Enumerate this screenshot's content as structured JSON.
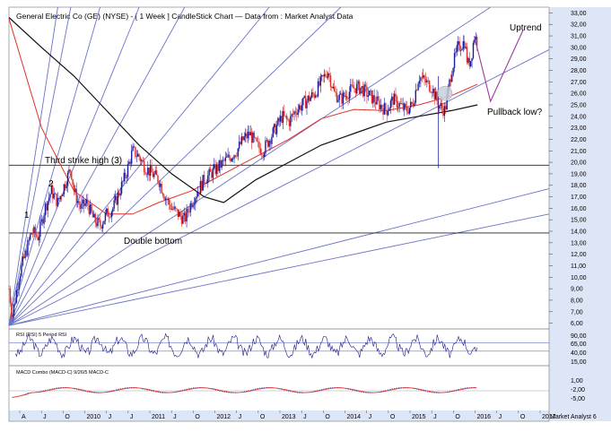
{
  "title": "General Electric Co (GE) (NYSE) -  [ 1 Week ] CandleStick Chart — Data from : Market Analyst Data",
  "watermark": "Market Analyst 6",
  "colors": {
    "up_candle": "#1a1aa0",
    "down_candle": "#e0302a",
    "red_ma": "#e0302a",
    "black_ma": "#111111",
    "fan_lines": "#6a74c8",
    "horizontal_lines": "#222222",
    "projection": "#9a3aa0",
    "circle": "#c8d0d8",
    "axis_bg": "#dde6f6"
  },
  "annotations": {
    "uptrend": "Uptrend",
    "pullback": "Pullback low?",
    "third_strike": "Third strike high (3)",
    "double_bottom": "Double bottom",
    "wave1": "1",
    "wave2": "2"
  },
  "rsi_panel": {
    "label": "RSI (RSI) 5 Period RSI",
    "ticks": [
      "90,00",
      "65,00",
      "40,00",
      "15,00"
    ]
  },
  "macd_panel": {
    "label": "MACD Combo (MACD-C) 9/26/5 MACD-C",
    "ticks": [
      "1,00",
      "-2,00",
      "-5,00"
    ]
  },
  "chart_data": {
    "type": "candlestick",
    "y_ticks": [
      "33,00",
      "32,00",
      "31,00",
      "30,00",
      "29,00",
      "28,00",
      "27,00",
      "26,00",
      "25,00",
      "24,00",
      "23,00",
      "22,00",
      "21,00",
      "20,00",
      "19,00",
      "18,00",
      "17,00",
      "16,00",
      "15,00",
      "14,00",
      "13,00",
      "12,00",
      "11,00",
      "10,00",
      "9,00",
      "8,00",
      "7,00",
      "6,00"
    ],
    "ylim": [
      5.5,
      33.5
    ],
    "x_labels": [
      "A",
      "J",
      "O",
      "2010",
      "J",
      "J",
      "2011",
      "J",
      "O",
      "2012",
      "J",
      "O",
      "2013",
      "J",
      "O",
      "2014",
      "J",
      "O",
      "2015",
      "J",
      "O",
      "2016",
      "J",
      "O",
      "2017"
    ],
    "horizontal_levels": [
      19.75,
      13.85
    ],
    "price_path": [
      [
        2009.0,
        9.0
      ],
      [
        2009.05,
        6.5
      ],
      [
        2009.15,
        10
      ],
      [
        2009.25,
        12
      ],
      [
        2009.35,
        14
      ],
      [
        2009.45,
        13.5
      ],
      [
        2009.55,
        16
      ],
      [
        2009.65,
        17.5
      ],
      [
        2009.75,
        16.5
      ],
      [
        2009.85,
        18
      ],
      [
        2009.95,
        19.5
      ],
      [
        2010.0,
        17.5
      ],
      [
        2010.1,
        16
      ],
      [
        2010.2,
        16.5
      ],
      [
        2010.3,
        15
      ],
      [
        2010.4,
        14.5
      ],
      [
        2010.5,
        15.5
      ],
      [
        2010.6,
        16
      ],
      [
        2010.7,
        17.5
      ],
      [
        2010.8,
        19
      ],
      [
        2010.9,
        21
      ],
      [
        2011.0,
        20.5
      ],
      [
        2011.1,
        19.5
      ],
      [
        2011.2,
        19
      ],
      [
        2011.3,
        18.5
      ],
      [
        2011.4,
        17
      ],
      [
        2011.5,
        16
      ],
      [
        2011.6,
        15.5
      ],
      [
        2011.7,
        15
      ],
      [
        2011.8,
        16.5
      ],
      [
        2011.9,
        17.5
      ],
      [
        2012.0,
        18.5
      ],
      [
        2012.1,
        19
      ],
      [
        2012.2,
        19.5
      ],
      [
        2012.3,
        20
      ],
      [
        2012.4,
        20.5
      ],
      [
        2012.5,
        21
      ],
      [
        2012.6,
        22
      ],
      [
        2012.7,
        22.5
      ],
      [
        2012.8,
        21.5
      ],
      [
        2012.9,
        21
      ],
      [
        2013.0,
        22
      ],
      [
        2013.1,
        23
      ],
      [
        2013.2,
        24
      ],
      [
        2013.3,
        23.5
      ],
      [
        2013.4,
        24.5
      ],
      [
        2013.5,
        25
      ],
      [
        2013.6,
        25.5
      ],
      [
        2013.7,
        26
      ],
      [
        2013.8,
        27
      ],
      [
        2013.9,
        28
      ],
      [
        2014.0,
        26
      ],
      [
        2014.1,
        25.5
      ],
      [
        2014.2,
        26
      ],
      [
        2014.3,
        26.5
      ],
      [
        2014.4,
        26.5
      ],
      [
        2014.5,
        26
      ],
      [
        2014.6,
        25.5
      ],
      [
        2014.7,
        25
      ],
      [
        2014.8,
        24.5
      ],
      [
        2014.9,
        25.5
      ],
      [
        2015.0,
        25
      ],
      [
        2015.1,
        24.5
      ],
      [
        2015.2,
        25
      ],
      [
        2015.3,
        27.5
      ],
      [
        2015.4,
        27
      ],
      [
        2015.5,
        26.5
      ],
      [
        2015.6,
        25
      ],
      [
        2015.7,
        24.5
      ],
      [
        2015.8,
        28
      ],
      [
        2015.9,
        30
      ],
      [
        2016.0,
        30.5
      ],
      [
        2016.05,
        28.5
      ],
      [
        2016.1,
        29
      ],
      [
        2016.15,
        31
      ],
      [
        2016.2,
        30.5
      ]
    ],
    "red_ma": [
      [
        2009.0,
        32.5
      ],
      [
        2009.5,
        23
      ],
      [
        2010.0,
        17.5
      ],
      [
        2010.5,
        15.5
      ],
      [
        2010.9,
        15.5
      ],
      [
        2011.3,
        16.5
      ],
      [
        2011.8,
        17.5
      ],
      [
        2012.3,
        19
      ],
      [
        2012.8,
        20.5
      ],
      [
        2013.3,
        22
      ],
      [
        2013.8,
        23.8
      ],
      [
        2014.3,
        24.6
      ],
      [
        2014.8,
        24.5
      ],
      [
        2015.3,
        25
      ],
      [
        2015.8,
        25.8
      ],
      [
        2016.2,
        26.8
      ]
    ],
    "black_ma": [
      [
        2009.0,
        32.6
      ],
      [
        2009.5,
        30
      ],
      [
        2010.0,
        27.5
      ],
      [
        2010.5,
        24.5
      ],
      [
        2011.0,
        21.5
      ],
      [
        2011.5,
        19
      ],
      [
        2012.0,
        17
      ],
      [
        2012.3,
        16.5
      ],
      [
        2012.8,
        18.5
      ],
      [
        2013.3,
        20
      ],
      [
        2013.8,
        21.5
      ],
      [
        2014.3,
        22.5
      ],
      [
        2014.8,
        23.5
      ],
      [
        2015.3,
        24
      ],
      [
        2015.8,
        24.5
      ],
      [
        2016.2,
        25
      ]
    ],
    "fan_origin": [
      2009.0,
      5.8
    ],
    "fan_targets": [
      [
        2009.75,
        33.5
      ],
      [
        2009.95,
        33.5
      ],
      [
        2010.4,
        33.5
      ],
      [
        2011.0,
        33.5
      ],
      [
        2011.7,
        33.5
      ],
      [
        2013.0,
        33.5
      ],
      [
        2014.1,
        33.5
      ],
      [
        2016.4,
        33.5
      ],
      [
        2017.3,
        29.8
      ],
      [
        2017.3,
        17.7
      ],
      [
        2017.3,
        15.5
      ]
    ],
    "projection": [
      [
        2016.15,
        31
      ],
      [
        2016.4,
        25.3
      ],
      [
        2016.9,
        31.5
      ]
    ],
    "spike": [
      [
        2015.6,
        19.5
      ],
      [
        2015.6,
        27.5
      ]
    ],
    "circle_at": [
      2015.7,
      26.0
    ]
  }
}
